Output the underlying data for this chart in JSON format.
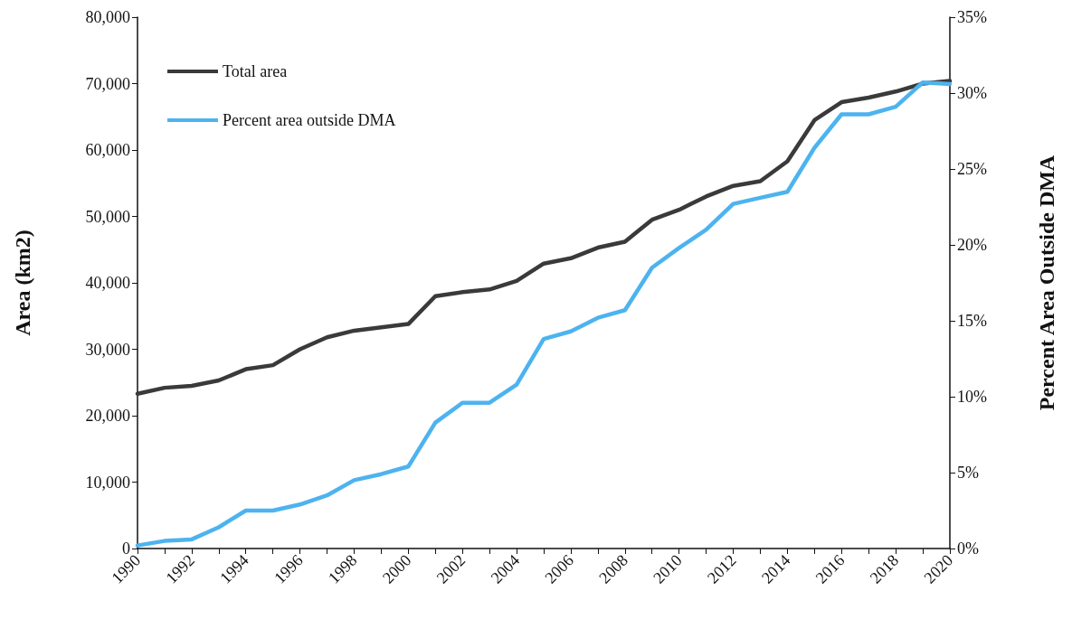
{
  "chart_data": {
    "type": "line",
    "ylabel": "Area (km2)",
    "y2label": "Percent Area Outside DMA",
    "x": [
      1990,
      1991,
      1992,
      1993,
      1994,
      1995,
      1996,
      1997,
      1998,
      1999,
      2000,
      2001,
      2002,
      2003,
      2004,
      2005,
      2006,
      2007,
      2008,
      2009,
      2010,
      2011,
      2012,
      2013,
      2014,
      2015,
      2016,
      2017,
      2018,
      2019,
      2020
    ],
    "series": [
      {
        "name": "Total area",
        "color": "#3a3a3a",
        "values": [
          23300,
          24200,
          24500,
          25300,
          27000,
          27600,
          30000,
          31800,
          32800,
          33300,
          33800,
          38000,
          38600,
          39000,
          40300,
          42900,
          43700,
          45300,
          46200,
          49500,
          51000,
          53000,
          54600,
          55300,
          58300,
          64500,
          67200,
          67900,
          68800,
          70000,
          70400
        ]
      },
      {
        "name": "Percent area outside DMA",
        "color": "#4db3ef",
        "axis": "y2",
        "values": [
          0.2,
          0.5,
          0.6,
          1.4,
          2.5,
          2.5,
          2.9,
          3.5,
          4.5,
          4.9,
          5.4,
          8.3,
          9.6,
          9.6,
          10.8,
          13.8,
          14.3,
          15.2,
          15.7,
          18.5,
          19.8,
          21.0,
          22.7,
          23.1,
          23.5,
          26.4,
          28.6,
          28.6,
          29.1,
          30.7,
          30.6
        ]
      }
    ],
    "xlim": [
      1990,
      2020
    ],
    "xticks": [
      1990,
      {
        "value": 1991,
        "label": null
      },
      1992,
      {
        "value": 1993,
        "label": null
      },
      1994,
      {
        "value": 1995,
        "label": null
      },
      1996,
      {
        "value": 1997,
        "label": null
      },
      1998,
      {
        "value": 1999,
        "label": null
      },
      2000,
      {
        "value": 2001,
        "label": null
      },
      2002,
      {
        "value": 2003,
        "label": null
      },
      2004,
      {
        "value": 2005,
        "label": null
      },
      2006,
      {
        "value": 2007,
        "label": null
      },
      2008,
      {
        "value": 2009,
        "label": null
      },
      2010,
      {
        "value": 2011,
        "label": null
      },
      2012,
      {
        "value": 2013,
        "label": null
      },
      2014,
      {
        "value": 2015,
        "label": null
      },
      2016,
      {
        "value": 2017,
        "label": null
      },
      2018,
      {
        "value": 2019,
        "label": null
      },
      2020
    ],
    "ylim": [
      0,
      80000
    ],
    "yticks": [
      0,
      {
        "value": 10000,
        "label": "10,000"
      },
      {
        "value": 20000,
        "label": "20,000"
      },
      {
        "value": 30000,
        "label": "30,000"
      },
      {
        "value": 40000,
        "label": "40,000"
      },
      {
        "value": 50000,
        "label": "50,000"
      },
      {
        "value": 60000,
        "label": "60,000"
      },
      {
        "value": 70000,
        "label": "70,000"
      },
      {
        "value": 80000,
        "label": "80,000"
      }
    ],
    "y2lim": [
      0,
      35
    ],
    "y2ticks": [
      {
        "value": 0,
        "label": "0%"
      },
      {
        "value": 5,
        "label": "5%"
      },
      {
        "value": 10,
        "label": "10%"
      },
      {
        "value": 15,
        "label": "15%"
      },
      {
        "value": 20,
        "label": "20%"
      },
      {
        "value": 25,
        "label": "25%"
      },
      {
        "value": 30,
        "label": "30%"
      },
      {
        "value": 35,
        "label": "35%"
      }
    ],
    "grid": false,
    "legend": "top left",
    "marker": "none",
    "line_style": "solid"
  }
}
